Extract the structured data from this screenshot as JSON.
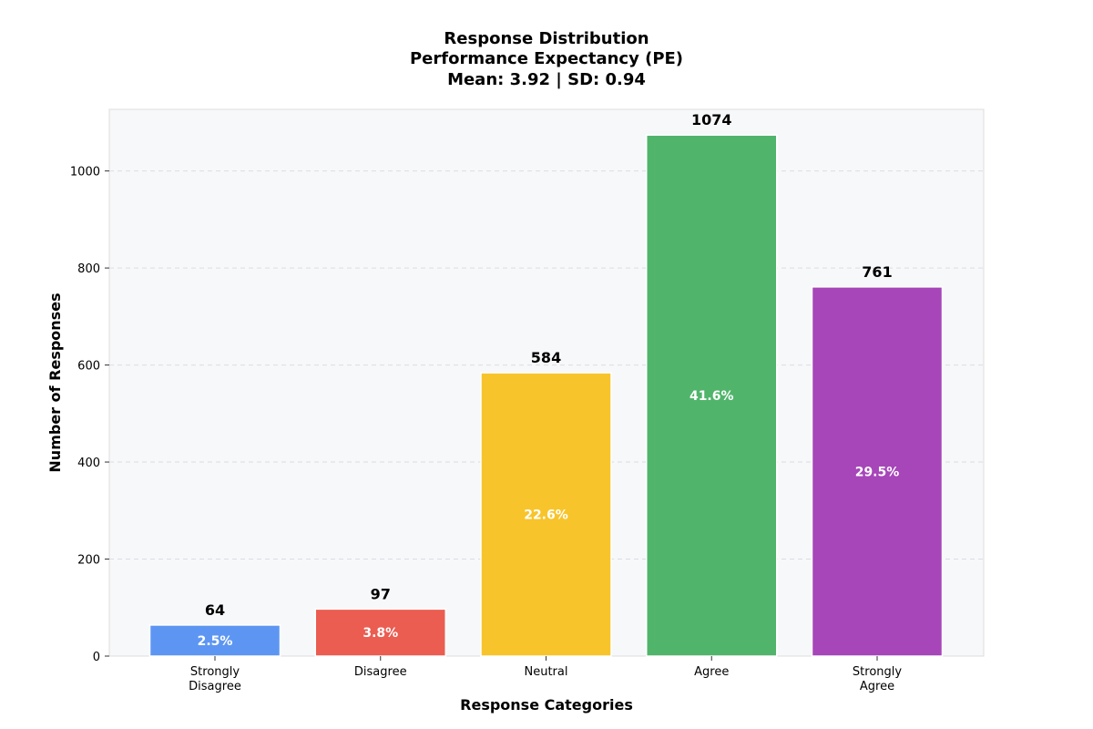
{
  "chart_data": {
    "type": "bar",
    "title_lines": [
      "Response Distribution",
      "Performance Expectancy (PE)",
      "Mean: 3.92 | SD: 0.94"
    ],
    "xlabel": "Response Categories",
    "ylabel": "Number of Responses",
    "categories": [
      [
        "Strongly",
        "Disagree"
      ],
      [
        "Disagree"
      ],
      [
        "Neutral"
      ],
      [
        "Agree"
      ],
      [
        "Strongly",
        "Agree"
      ]
    ],
    "values": [
      64,
      97,
      584,
      1074,
      761
    ],
    "value_labels": [
      "64",
      "97",
      "584",
      "1074",
      "761"
    ],
    "percent_labels": [
      "2.5%",
      "3.8%",
      "22.6%",
      "41.6%",
      "29.5%"
    ],
    "colors": [
      "#5d96f2",
      "#eb5c51",
      "#f8c42b",
      "#51b46b",
      "#a646b9"
    ],
    "ylim": [
      0,
      1127
    ],
    "yticks": [
      0,
      200,
      400,
      600,
      800,
      1000
    ],
    "grid": true,
    "plot_background": "#f7f8fa"
  }
}
